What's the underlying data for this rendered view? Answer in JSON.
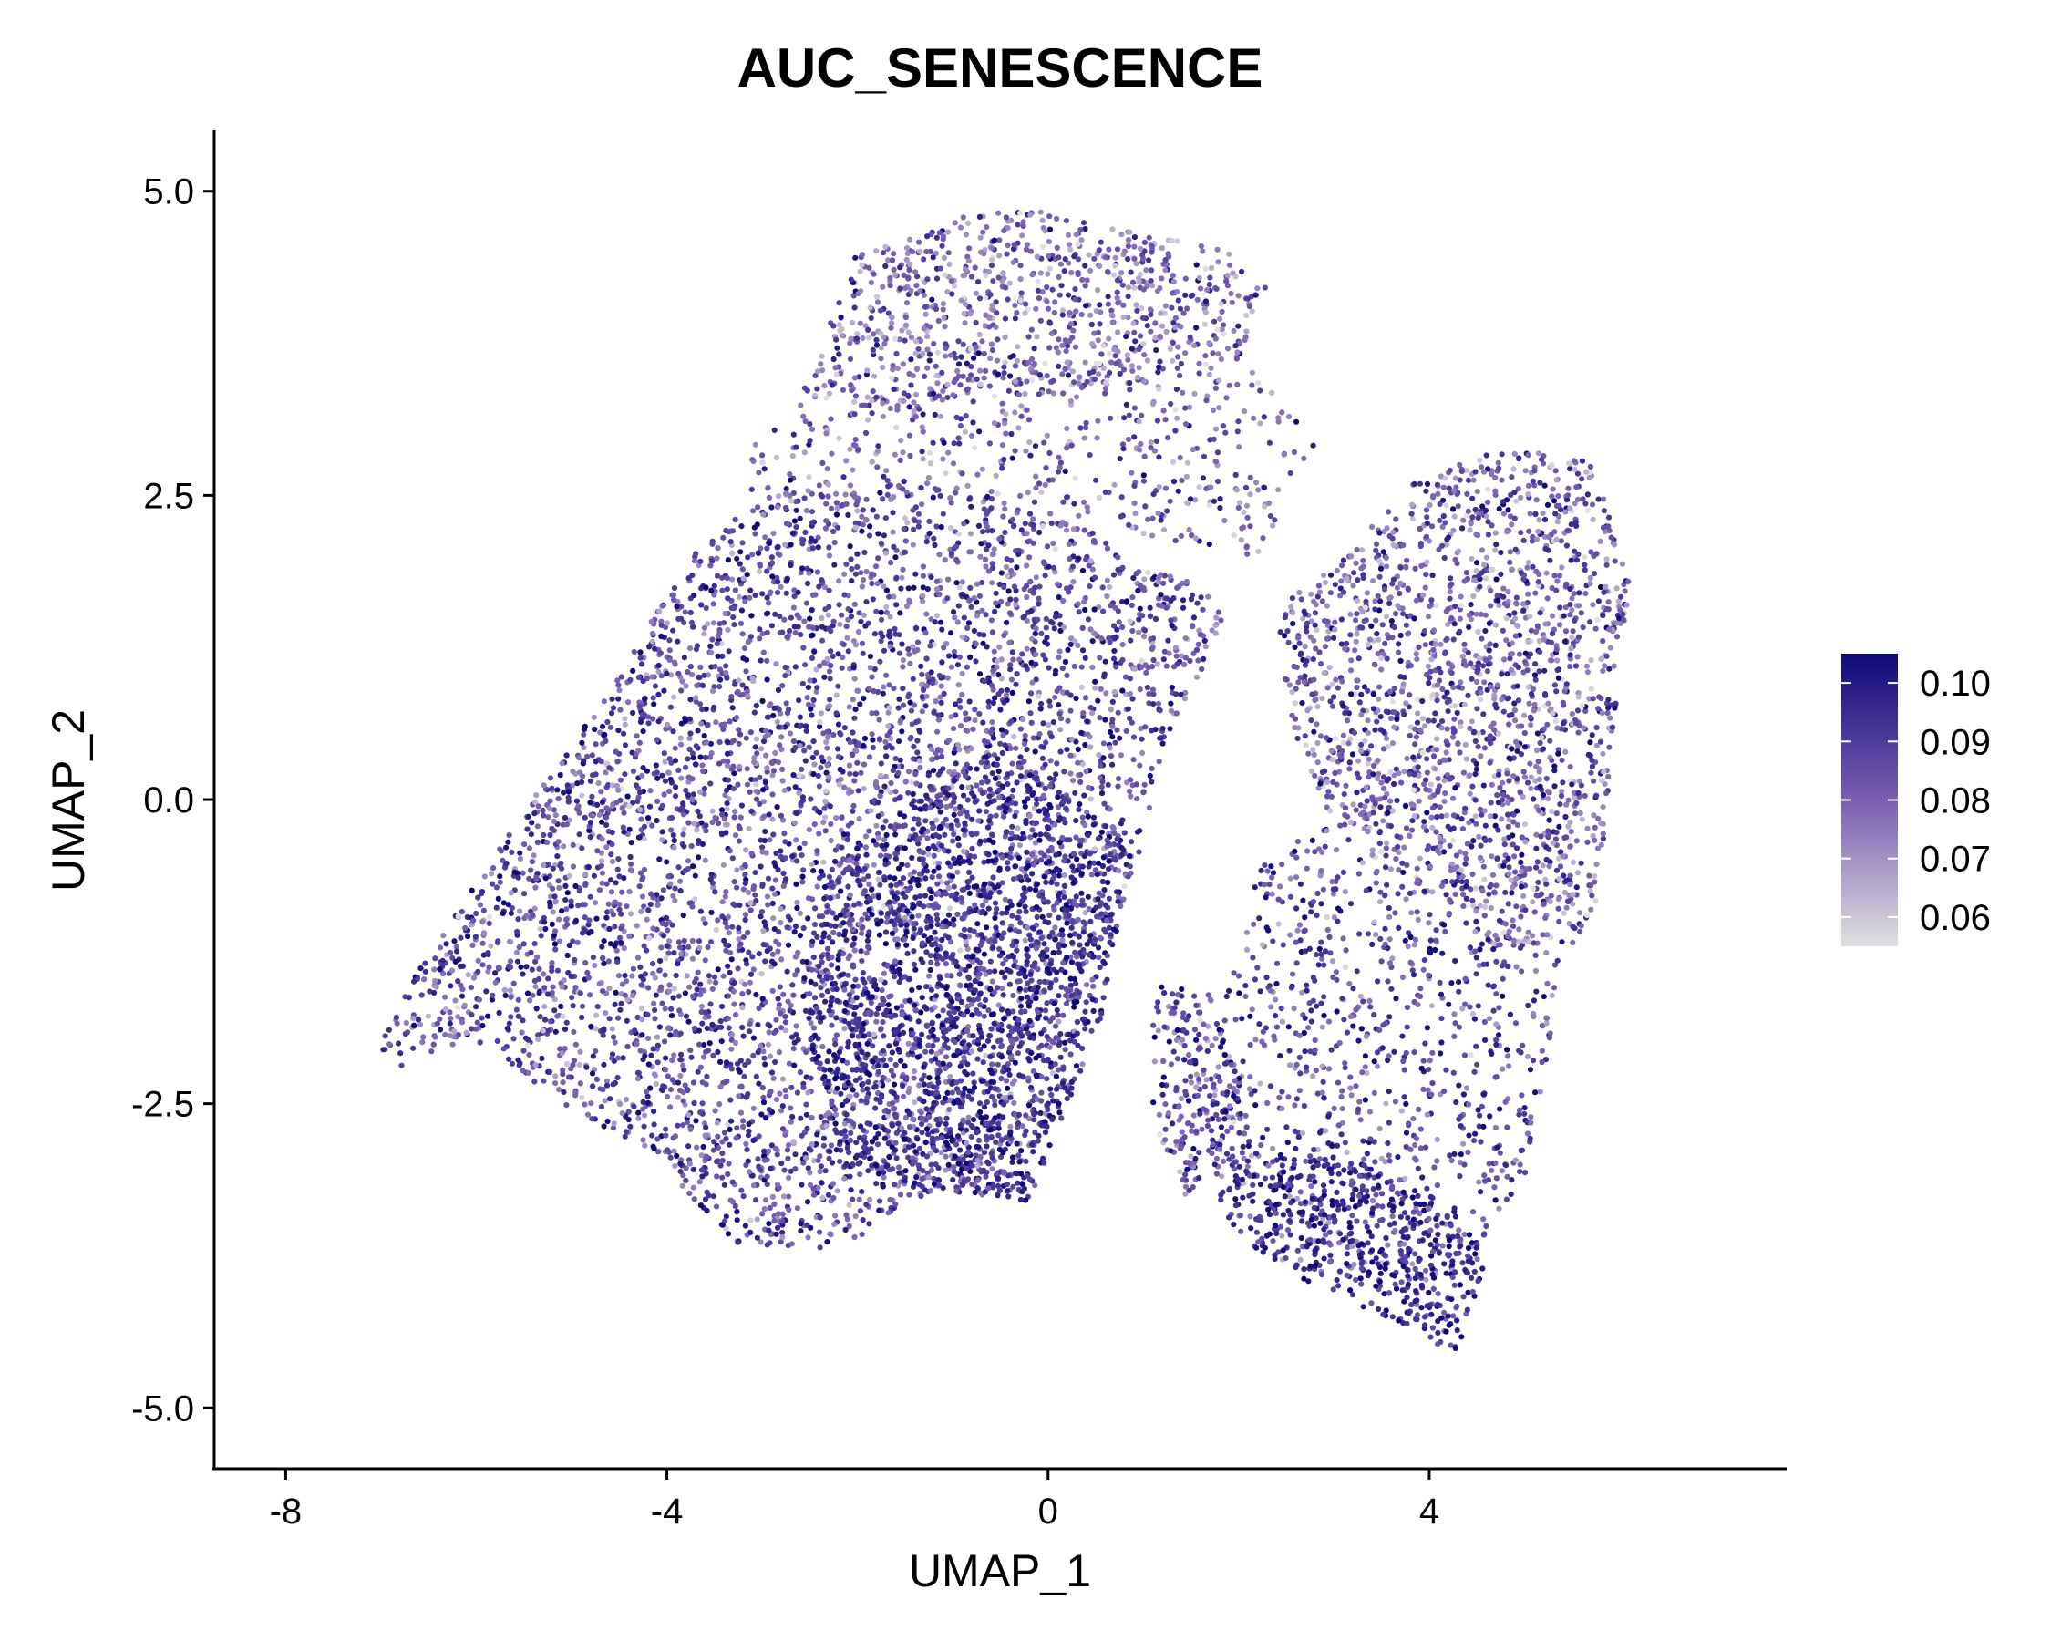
{
  "chart_data": {
    "type": "scatter",
    "title": "AUC_SENESCENCE",
    "xlabel": "UMAP_1",
    "ylabel": "UMAP_2",
    "xlim": [
      -8.75,
      7.75
    ],
    "ylim": [
      -5.5,
      5.5
    ],
    "xticks": [
      -8,
      -4,
      0,
      4
    ],
    "xtick_labels": [
      "-8",
      "-4",
      "0",
      "4"
    ],
    "yticks": [
      -5.0,
      -2.5,
      0.0,
      2.5,
      5.0
    ],
    "ytick_labels": [
      "-5.0",
      "-2.5",
      "0.0",
      "2.5",
      "5.0"
    ],
    "grid": false,
    "legend": {
      "placement": "right",
      "type": "colorbar",
      "range": [
        0.055,
        0.105
      ],
      "ticks": [
        0.06,
        0.07,
        0.08,
        0.09,
        0.1
      ],
      "tick_labels": [
        "0.06",
        "0.07",
        "0.08",
        "0.09",
        "0.10"
      ]
    },
    "colors": {
      "low": "#e0e0e0",
      "mid": "#7a5eb0",
      "high": "#0e0a78"
    },
    "regions": [
      {
        "polygon": [
          [
            -7.1,
            -2.1
          ],
          [
            -6.6,
            -1.4
          ],
          [
            -5.6,
            -0.2
          ],
          [
            -4.5,
            1.0
          ],
          [
            -3.7,
            2.1
          ],
          [
            -2.7,
            2.6
          ],
          [
            -1.2,
            2.6
          ],
          [
            0.5,
            2.2
          ],
          [
            1.9,
            1.6
          ],
          [
            1.2,
            0.3
          ],
          [
            0.9,
            -0.6
          ],
          [
            0.4,
            -1.7
          ],
          [
            0.1,
            -2.2
          ],
          [
            -0.2,
            -3.3
          ],
          [
            -1.2,
            -3.2
          ],
          [
            -2.2,
            -3.7
          ],
          [
            -3.2,
            -3.7
          ],
          [
            -4.2,
            -2.9
          ],
          [
            -5.3,
            -2.4
          ],
          [
            -6.1,
            -2.0
          ],
          [
            -6.8,
            -2.2
          ]
        ],
        "weight": 5200,
        "mean": 0.086,
        "spread": 0.011
      },
      {
        "polygon": [
          [
            -2.4,
            -0.6
          ],
          [
            -0.5,
            0.5
          ],
          [
            0.9,
            -0.4
          ],
          [
            0.5,
            -2.0
          ],
          [
            -0.2,
            -3.3
          ],
          [
            -1.2,
            -3.2
          ],
          [
            -2.2,
            -3.0
          ],
          [
            -2.6,
            -1.7
          ]
        ],
        "weight": 1500,
        "mean": 0.094,
        "spread": 0.009
      },
      {
        "polygon": [
          [
            -2.6,
            3.3
          ],
          [
            -2.0,
            4.5
          ],
          [
            -0.5,
            4.9
          ],
          [
            0.7,
            4.7
          ],
          [
            1.9,
            4.5
          ],
          [
            2.3,
            4.2
          ],
          [
            2.0,
            3.6
          ],
          [
            1.0,
            3.4
          ],
          [
            -0.4,
            3.4
          ],
          [
            -1.6,
            3.2
          ]
        ],
        "weight": 900,
        "mean": 0.078,
        "spread": 0.012
      },
      {
        "polygon": [
          [
            -2.9,
            3.2
          ],
          [
            -1.5,
            3.5
          ],
          [
            0.5,
            3.6
          ],
          [
            2.4,
            3.5
          ],
          [
            2.8,
            2.9
          ],
          [
            2.2,
            2.0
          ],
          [
            0.5,
            2.2
          ],
          [
            -1.2,
            2.5
          ],
          [
            -2.7,
            2.4
          ],
          [
            -3.3,
            2.6
          ]
        ],
        "weight": 450,
        "mean": 0.08,
        "spread": 0.012
      },
      {
        "polygon": [
          [
            2.4,
            1.6
          ],
          [
            3.0,
            1.9
          ],
          [
            3.8,
            2.6
          ],
          [
            4.8,
            2.9
          ],
          [
            5.7,
            2.8
          ],
          [
            6.1,
            1.8
          ],
          [
            5.9,
            0.3
          ],
          [
            5.8,
            -0.8
          ],
          [
            5.5,
            -1.2
          ],
          [
            4.7,
            -1.2
          ],
          [
            3.9,
            -0.8
          ],
          [
            3.0,
            -0.2
          ],
          [
            2.5,
            0.7
          ]
        ],
        "weight": 1900,
        "mean": 0.082,
        "spread": 0.012
      },
      {
        "polygon": [
          [
            2.2,
            -0.5
          ],
          [
            3.0,
            -0.2
          ],
          [
            4.1,
            -0.9
          ],
          [
            5.4,
            -1.3
          ],
          [
            5.2,
            -2.3
          ],
          [
            5.0,
            -3.1
          ],
          [
            4.5,
            -3.8
          ],
          [
            4.2,
            -4.5
          ],
          [
            3.8,
            -4.2
          ],
          [
            3.3,
            -3.9
          ],
          [
            2.6,
            -3.9
          ],
          [
            2.1,
            -3.6
          ],
          [
            1.7,
            -2.9
          ],
          [
            1.7,
            -2.0
          ],
          [
            2.0,
            -1.2
          ]
        ],
        "weight": 900,
        "mean": 0.086,
        "spread": 0.011
      },
      {
        "polygon": [
          [
            1.9,
            -2.9
          ],
          [
            2.5,
            -2.9
          ],
          [
            3.4,
            -3.0
          ],
          [
            4.4,
            -3.4
          ],
          [
            4.6,
            -3.9
          ],
          [
            4.3,
            -4.6
          ],
          [
            3.7,
            -4.3
          ],
          [
            2.8,
            -4.0
          ],
          [
            2.0,
            -3.6
          ],
          [
            1.8,
            -3.3
          ]
        ],
        "weight": 450,
        "mean": 0.095,
        "spread": 0.009
      },
      {
        "polygon": [
          [
            1.1,
            -1.5
          ],
          [
            1.7,
            -1.6
          ],
          [
            2.1,
            -2.4
          ],
          [
            1.8,
            -3.1
          ],
          [
            1.4,
            -3.3
          ],
          [
            1.1,
            -2.6
          ]
        ],
        "weight": 220,
        "mean": 0.085,
        "spread": 0.012
      }
    ]
  }
}
